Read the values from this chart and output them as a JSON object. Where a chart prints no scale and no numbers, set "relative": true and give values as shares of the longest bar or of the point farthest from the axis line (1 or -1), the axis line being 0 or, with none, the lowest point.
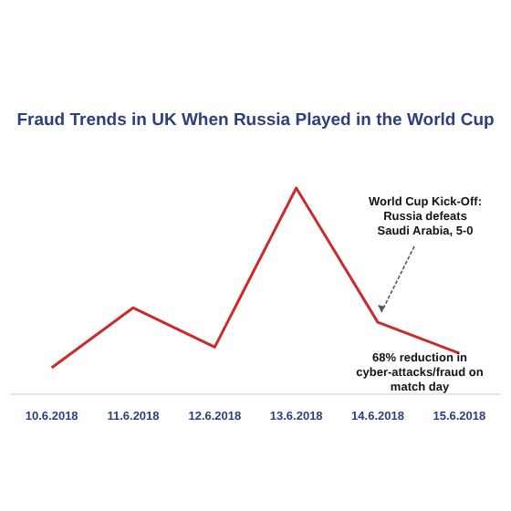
{
  "chart_data": {
    "type": "line",
    "title": "Fraud Trends in UK When Russia Played in the World Cup",
    "relative": true,
    "categories": [
      "10.6.2018",
      "11.6.2018",
      "12.6.2018",
      "13.6.2018",
      "14.6.2018",
      "15.6.2018"
    ],
    "series": [
      {
        "color": "#cc2b2b",
        "values": [
          0.13,
          0.42,
          0.23,
          1,
          0.35,
          0.2
        ]
      }
    ],
    "annotations": [
      {
        "text": "World Cup Kick-Off: Russia defeats Saudi Arabia, 5-0",
        "x": "14.6.2018",
        "y": 0.35
      },
      "68% reduction in cyber-attacks/fraud on match day"
    ],
    "marker": "none",
    "legend": false
  }
}
